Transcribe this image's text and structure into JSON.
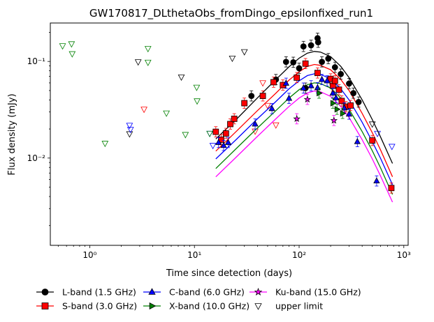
{
  "chart_data": {
    "type": "scatter",
    "title": "GW170817_DLthetaObs_fromDingo_epsilonfixed_run1",
    "xlabel": "Time since detection (days)",
    "ylabel": "Flux density (mJy)",
    "xscale": "log",
    "yscale": "log",
    "xlim": [
      0.42,
      1100
    ],
    "ylim": [
      0.00125,
      0.25
    ],
    "x_ticks": [
      {
        "value": 1,
        "label": "10⁰"
      },
      {
        "value": 10,
        "label": "10¹"
      },
      {
        "value": 100,
        "label": "10²"
      },
      {
        "value": 1000,
        "label": "10³"
      }
    ],
    "y_ticks": [
      {
        "value": 0.01,
        "label": "10⁻²"
      },
      {
        "value": 0.1,
        "label": "10⁻¹"
      }
    ],
    "legend_position": "below plot",
    "legend": [
      {
        "label": "L-band (1.5 GHz)",
        "marker": "circle",
        "color": "#000000",
        "fill": "#000000"
      },
      {
        "label": "S-band (3.0 GHz)",
        "marker": "square",
        "color": "#ff0000",
        "fill": "#ff0000"
      },
      {
        "label": "C-band (6.0 GHz)",
        "marker": "triangle-up",
        "color": "#0000ff",
        "fill": "#0000ff"
      },
      {
        "label": "X-band (10.0 GHz)",
        "marker": "triangle-right",
        "color": "#008000",
        "fill": "#008000"
      },
      {
        "label": "Ku-band (15.0 GHz)",
        "marker": "star",
        "color": "#ff00ff",
        "fill": "#ff00ff"
      },
      {
        "label": "upper limit",
        "marker": "triangle-down",
        "color": "#000000",
        "fill": "none"
      }
    ],
    "series": [
      {
        "name": "L-band (1.5 GHz)",
        "color": "#000000",
        "marker": "circle",
        "detections": [
          [
            35,
            0.044
          ],
          [
            60,
            0.065
          ],
          [
            75,
            0.099
          ],
          [
            88,
            0.098
          ],
          [
            100,
            0.085
          ],
          [
            110,
            0.143
          ],
          [
            115,
            0.053
          ],
          [
            130,
            0.147
          ],
          [
            150,
            0.174
          ],
          [
            152,
            0.158
          ],
          [
            165,
            0.099
          ],
          [
            190,
            0.107
          ],
          [
            220,
            0.087
          ],
          [
            250,
            0.074
          ],
          [
            300,
            0.059
          ],
          [
            330,
            0.047
          ],
          [
            370,
            0.038
          ]
        ],
        "model": [
          [
            16,
            0.0158
          ],
          [
            25,
            0.025
          ],
          [
            40,
            0.042
          ],
          [
            60,
            0.065
          ],
          [
            80,
            0.088
          ],
          [
            100,
            0.108
          ],
          [
            120,
            0.122
          ],
          [
            140,
            0.127
          ],
          [
            160,
            0.125
          ],
          [
            200,
            0.112
          ],
          [
            250,
            0.089
          ],
          [
            300,
            0.068
          ],
          [
            400,
            0.04
          ],
          [
            500,
            0.025
          ],
          [
            600,
            0.0165
          ],
          [
            780,
            0.0088
          ]
        ]
      },
      {
        "name": "S-band (3.0 GHz)",
        "color": "#ff0000",
        "marker": "square",
        "detections": [
          [
            16,
            0.0187
          ],
          [
            18,
            0.0155
          ],
          [
            20,
            0.018
          ],
          [
            22,
            0.0225
          ],
          [
            24,
            0.0255
          ],
          [
            30,
            0.037
          ],
          [
            45,
            0.044
          ],
          [
            57,
            0.061
          ],
          [
            70,
            0.057
          ],
          [
            95,
            0.068
          ],
          [
            115,
            0.095
          ],
          [
            150,
            0.076
          ],
          [
            200,
            0.066
          ],
          [
            210,
            0.056
          ],
          [
            220,
            0.063
          ],
          [
            240,
            0.051
          ],
          [
            255,
            0.039
          ],
          [
            280,
            0.034
          ],
          [
            310,
            0.035
          ],
          [
            500,
            0.0152
          ],
          [
            760,
            0.0049
          ]
        ],
        "model": [
          [
            16,
            0.0118
          ],
          [
            25,
            0.0188
          ],
          [
            40,
            0.031
          ],
          [
            60,
            0.047
          ],
          [
            80,
            0.064
          ],
          [
            100,
            0.078
          ],
          [
            120,
            0.089
          ],
          [
            140,
            0.093
          ],
          [
            160,
            0.091
          ],
          [
            200,
            0.082
          ],
          [
            250,
            0.065
          ],
          [
            300,
            0.05
          ],
          [
            400,
            0.029
          ],
          [
            500,
            0.0183
          ],
          [
            600,
            0.0121
          ],
          [
            780,
            0.0064
          ]
        ]
      },
      {
        "name": "C-band (6.0 GHz)",
        "color": "#0000ff",
        "marker": "triangle-up",
        "detections": [
          [
            17,
            0.0145
          ],
          [
            19,
            0.0135
          ],
          [
            21,
            0.0145
          ],
          [
            38,
            0.0225
          ],
          [
            55,
            0.0325
          ],
          [
            75,
            0.0595
          ],
          [
            80,
            0.0415
          ],
          [
            110,
            0.053
          ],
          [
            130,
            0.056
          ],
          [
            150,
            0.0535
          ],
          [
            165,
            0.065
          ],
          [
            185,
            0.063
          ],
          [
            210,
            0.047
          ],
          [
            225,
            0.042
          ],
          [
            270,
            0.033
          ],
          [
            300,
            0.0285
          ],
          [
            360,
            0.0148
          ],
          [
            550,
            0.0058
          ]
        ],
        "model": [
          [
            16,
            0.0098
          ],
          [
            25,
            0.0155
          ],
          [
            40,
            0.0255
          ],
          [
            60,
            0.0385
          ],
          [
            80,
            0.052
          ],
          [
            100,
            0.063
          ],
          [
            120,
            0.0715
          ],
          [
            140,
            0.0745
          ],
          [
            160,
            0.0735
          ],
          [
            200,
            0.066
          ],
          [
            250,
            0.052
          ],
          [
            300,
            0.04
          ],
          [
            400,
            0.0235
          ],
          [
            500,
            0.0148
          ],
          [
            600,
            0.0099
          ],
          [
            780,
            0.0053
          ]
        ]
      },
      {
        "name": "X-band (10.0 GHz)",
        "color": "#008000",
        "marker": "triangle-right",
        "detections": [
          [
            155,
            0.047
          ],
          [
            210,
            0.037
          ],
          [
            230,
            0.032
          ],
          [
            260,
            0.029
          ]
        ],
        "model": [
          [
            16,
            0.0078
          ],
          [
            25,
            0.0125
          ],
          [
            40,
            0.0205
          ],
          [
            60,
            0.031
          ],
          [
            80,
            0.0418
          ],
          [
            100,
            0.051
          ],
          [
            120,
            0.0575
          ],
          [
            140,
            0.06
          ],
          [
            160,
            0.059
          ],
          [
            200,
            0.053
          ],
          [
            250,
            0.0418
          ],
          [
            300,
            0.032
          ],
          [
            400,
            0.0188
          ],
          [
            500,
            0.0119
          ],
          [
            600,
            0.0079
          ],
          [
            780,
            0.0042
          ]
        ]
      },
      {
        "name": "Ku-band (15.0 GHz)",
        "color": "#ff00ff",
        "marker": "star",
        "detections": [
          [
            95,
            0.0255
          ],
          [
            120,
            0.0405
          ],
          [
            215,
            0.0245
          ]
        ],
        "model": [
          [
            16,
            0.0064
          ],
          [
            25,
            0.0102
          ],
          [
            40,
            0.0168
          ],
          [
            60,
            0.0255
          ],
          [
            80,
            0.0342
          ],
          [
            100,
            0.0418
          ],
          [
            120,
            0.0472
          ],
          [
            140,
            0.0495
          ],
          [
            160,
            0.0485
          ],
          [
            200,
            0.0435
          ],
          [
            250,
            0.0343
          ],
          [
            300,
            0.0263
          ],
          [
            400,
            0.0155
          ],
          [
            500,
            0.0098
          ],
          [
            600,
            0.0065
          ],
          [
            780,
            0.0035
          ]
        ]
      }
    ],
    "upper_limits": [
      {
        "band": "L-band (1.5 GHz)",
        "color": "#000000",
        "points": [
          [
            2.4,
            0.0178
          ],
          [
            2.9,
            0.099
          ],
          [
            23,
            0.108
          ],
          [
            30,
            0.126
          ]
        ]
      },
      {
        "band": "S-band (3.0 GHz)",
        "color": "#ff0000",
        "points": [
          [
            3.3,
            0.032
          ],
          [
            38,
            0.019
          ],
          [
            45,
            0.06
          ],
          [
            50,
            0.035
          ],
          [
            60,
            0.022
          ]
        ]
      },
      {
        "band": "C-band (6.0 GHz)",
        "color": "#0000ff",
        "points": [
          [
            2.4,
            0.0218
          ],
          [
            2.45,
            0.0198
          ],
          [
            14,
            0.018
          ],
          [
            15,
            0.0135
          ],
          [
            560,
            0.018
          ],
          [
            770,
            0.0132
          ]
        ]
      },
      {
        "band": "X-band (10.0 GHz)",
        "color": "#008000",
        "points": [
          [
            0.55,
            0.145
          ],
          [
            0.67,
            0.152
          ],
          [
            0.68,
            0.12
          ],
          [
            1.4,
            0.0142
          ],
          [
            3.6,
            0.136
          ],
          [
            3.6,
            0.098
          ],
          [
            5.4,
            0.0292
          ],
          [
            8.2,
            0.0175
          ],
          [
            10.5,
            0.054
          ],
          [
            10.6,
            0.039
          ],
          [
            14,
            0.018
          ]
        ]
      },
      {
        "band": "Ku-band (15.0 GHz)",
        "color": "#ff00ff",
        "points": []
      },
      {
        "band": "other",
        "color": "#000000",
        "points": [
          [
            7.5,
            0.069
          ],
          [
            500,
            0.0225
          ]
        ]
      }
    ]
  }
}
